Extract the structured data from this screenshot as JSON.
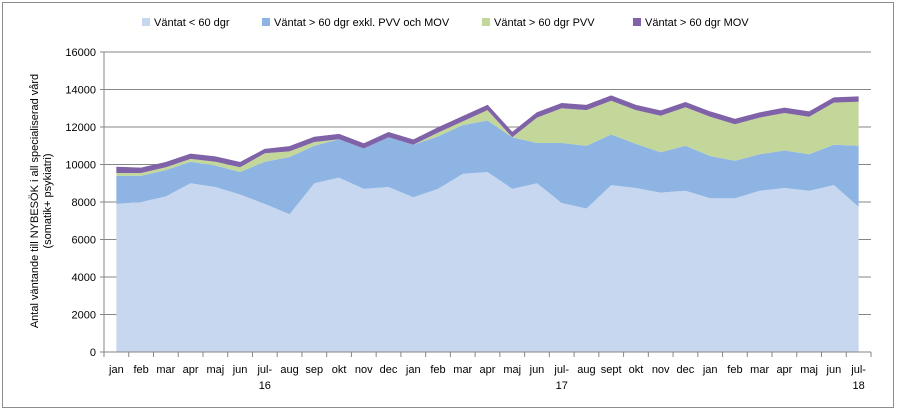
{
  "chart_data": {
    "type": "area",
    "stacked": true,
    "ylabel": "Antal väntande till NYBESÖK i all specialiserad vård\n(somatik+ psykiatri)",
    "ylim": [
      0,
      16000
    ],
    "yticks": [
      0,
      2000,
      4000,
      6000,
      8000,
      10000,
      12000,
      14000,
      16000
    ],
    "y_tick_labels": [
      "0",
      "2000",
      "4000",
      "6000",
      "8000",
      "10000",
      "12000",
      "14000",
      "16000"
    ],
    "grid": true,
    "legend_position": "top",
    "categories": [
      "jan",
      "feb",
      "mar",
      "apr",
      "maj",
      "jun",
      "jul-",
      "aug",
      "sep",
      "okt",
      "nov",
      "dec",
      "jan",
      "feb",
      "mar",
      "apr",
      "maj",
      "jun",
      "jul-",
      "aug",
      "sept",
      "okt",
      "nov",
      "dec",
      "jan",
      "feb",
      "mar",
      "apr",
      "maj",
      "jun",
      "jul-"
    ],
    "year_labels": [
      {
        "after_category_index": 6,
        "label": "16"
      },
      {
        "after_category_index": 18,
        "label": "17"
      },
      {
        "after_category_index": 30,
        "label": "18"
      }
    ],
    "series": [
      {
        "name": "Väntat < 60 dgr",
        "color": "#c6d7ef",
        "values": [
          7900,
          8000,
          8300,
          9000,
          8800,
          8400,
          7900,
          7350,
          9000,
          9300,
          8700,
          8800,
          8250,
          8700,
          9500,
          9600,
          8700,
          9000,
          7950,
          7650,
          8900,
          8750,
          8500,
          8600,
          8200,
          8200,
          8600,
          8750,
          8600,
          8900,
          7750
        ]
      },
      {
        "name": "Väntat > 60 dgr exkl. PVV och MOV",
        "color": "#8eb4e3",
        "values": [
          1500,
          1400,
          1400,
          1150,
          1150,
          1200,
          2250,
          3050,
          2000,
          2050,
          2150,
          2650,
          2800,
          2800,
          2600,
          2750,
          2750,
          2150,
          3200,
          3350,
          2700,
          2350,
          2150,
          2400,
          2250,
          2000,
          1950,
          2000,
          1950,
          2150,
          3250
        ]
      },
      {
        "name": "Väntat > 60 dgr PVV",
        "color": "#c4d79b",
        "values": [
          150,
          150,
          150,
          150,
          200,
          250,
          450,
          300,
          200,
          0,
          0,
          0,
          0,
          200,
          200,
          550,
          0,
          1350,
          1850,
          1900,
          1800,
          1800,
          1950,
          2050,
          2100,
          1950,
          1950,
          2000,
          2000,
          2250,
          2350
        ]
      },
      {
        "name": "Väntat > 60 dgr MOV",
        "color": "#7f62a8",
        "values": [
          300,
          250,
          250,
          250,
          250,
          250,
          200,
          250,
          250,
          250,
          250,
          250,
          250,
          250,
          250,
          250,
          250,
          250,
          250,
          250,
          250,
          250,
          250,
          250,
          250,
          250,
          250,
          250,
          250,
          250,
          250
        ]
      }
    ]
  }
}
